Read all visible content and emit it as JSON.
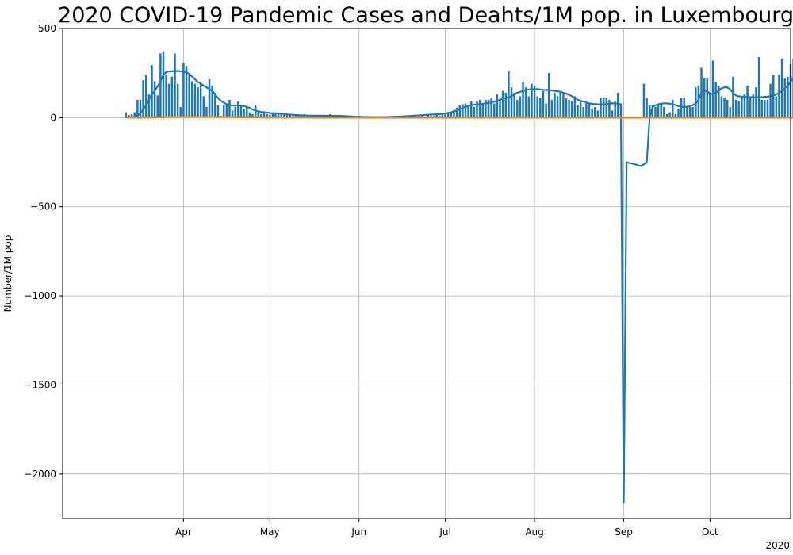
{
  "chart_data": {
    "type": "bar",
    "title": "2020 COVID-19 Pandemic Cases and Deahts/1M pop. in Luxembourg",
    "ylabel": "Number/1M pop",
    "x_offset_label": "2020",
    "ylim": [
      -2250,
      500
    ],
    "xlim": [
      "2020-02-19",
      "2020-10-29"
    ],
    "grid": true,
    "y_ticks": [
      {
        "value": 500,
        "label": "500"
      },
      {
        "value": 0,
        "label": "0"
      },
      {
        "value": -500,
        "label": "−500"
      },
      {
        "value": -1000,
        "label": "−1000"
      },
      {
        "value": -1500,
        "label": "−1500"
      },
      {
        "value": -2000,
        "label": "−2000"
      }
    ],
    "x_ticks": [
      {
        "date": "2020-04-01",
        "label": "Apr"
      },
      {
        "date": "2020-05-01",
        "label": "May"
      },
      {
        "date": "2020-06-01",
        "label": "Jun"
      },
      {
        "date": "2020-07-01",
        "label": "Jul"
      },
      {
        "date": "2020-08-01",
        "label": "Aug"
      },
      {
        "date": "2020-09-01",
        "label": "Sep"
      },
      {
        "date": "2020-10-01",
        "label": "Oct"
      }
    ],
    "colors": {
      "cases": "#1f77b4",
      "deaths": "#ff7f0e",
      "grid": "#b0b0b0"
    },
    "series": [
      {
        "kind": "bars",
        "start": "2020-03-12",
        "values": [
          30,
          15,
          20,
          30,
          100,
          100,
          210,
          240,
          130,
          295,
          205,
          125,
          360,
          370,
          240,
          190,
          230,
          360,
          190,
          60,
          305,
          290,
          240,
          205,
          190,
          170,
          195,
          120,
          60,
          215,
          180,
          140,
          70,
          10,
          70,
          80,
          100,
          40,
          60,
          90,
          70,
          50,
          60,
          30,
          20,
          70,
          40,
          20,
          25,
          20,
          15,
          30,
          20,
          20,
          25,
          15,
          20,
          20,
          10,
          15,
          10,
          15,
          20,
          10,
          10,
          10,
          15,
          10,
          15,
          10,
          10,
          20,
          15,
          10,
          10,
          10,
          10,
          10,
          10,
          5,
          5,
          10,
          5,
          5,
          5,
          5,
          5,
          5,
          5,
          5,
          5,
          5,
          5,
          5,
          5,
          10,
          5,
          10,
          5,
          10,
          15,
          5,
          10,
          15,
          5,
          20,
          10,
          10,
          20,
          10,
          20,
          25,
          25,
          30,
          45,
          55,
          70,
          75,
          80,
          70,
          90,
          60,
          90,
          100,
          80,
          100,
          100,
          110,
          80,
          130,
          100,
          150,
          140,
          260,
          170,
          140,
          100,
          120,
          200,
          170,
          120,
          190,
          180,
          120,
          110,
          150,
          80,
          250,
          100,
          140,
          120,
          140,
          130,
          110,
          100,
          90,
          120,
          70,
          90,
          60,
          80,
          80,
          50,
          60,
          40,
          110,
          110,
          110,
          100,
          40,
          90,
          140,
          70,
          0,
          0,
          0,
          0,
          0,
          0,
          0,
          190,
          110,
          70,
          70,
          60,
          70,
          80,
          60,
          20,
          30,
          100,
          20,
          50,
          110,
          110,
          60,
          60,
          60,
          170,
          180,
          280,
          220,
          220,
          140,
          320,
          200,
          180,
          120,
          110,
          100,
          60,
          230,
          100,
          90,
          120,
          130,
          180,
          120,
          130,
          170,
          340,
          100,
          100,
          100,
          190,
          240,
          120,
          240,
          330,
          220,
          230,
          300,
          330,
          360
        ],
        "name": ""
      },
      {
        "kind": "line",
        "start": "2020-03-12",
        "values": [
          0,
          0,
          0,
          5,
          10,
          25,
          45,
          70,
          100,
          130,
          150,
          175,
          205,
          240,
          255,
          260,
          260,
          262,
          262,
          260,
          258,
          255,
          245,
          230,
          215,
          200,
          190,
          180,
          170,
          160,
          150,
          130,
          110,
          95,
          85,
          75,
          70,
          68,
          68,
          68,
          68,
          65,
          60,
          55,
          45,
          40,
          35,
          32,
          30,
          28,
          26,
          25,
          25,
          24,
          22,
          20,
          18,
          17,
          16,
          15,
          14,
          13,
          12,
          12,
          11,
          11,
          11,
          11,
          11,
          11,
          10,
          10,
          10,
          10,
          10,
          10,
          9,
          8,
          7,
          6,
          5,
          5,
          4,
          4,
          4,
          3,
          3,
          3,
          3,
          3,
          3,
          4,
          4,
          5,
          5,
          6,
          7,
          8,
          9,
          10,
          11,
          12,
          13,
          14,
          15,
          16,
          17,
          18,
          19,
          20,
          22,
          24,
          27,
          30,
          35,
          40,
          48,
          55,
          60,
          65,
          70,
          72,
          74,
          76,
          78,
          80,
          82,
          85,
          90,
          95,
          100,
          105,
          110,
          115,
          120,
          130,
          140,
          145,
          150,
          155,
          158,
          160,
          160,
          160,
          158,
          156,
          155,
          155,
          152,
          150,
          148,
          145,
          140,
          135,
          128,
          120,
          110,
          100,
          95,
          90,
          85,
          80,
          78,
          76,
          75,
          74,
          74,
          76,
          78,
          80,
          80,
          78,
          75,
          -2160,
          -250,
          -255,
          -258,
          -262,
          -268,
          -272,
          -262,
          -252,
          0,
          60,
          70,
          75,
          78,
          80,
          80,
          78,
          75,
          70,
          65,
          60,
          60,
          62,
          65,
          70,
          80,
          100,
          140,
          150,
          148,
          135,
          132,
          140,
          152,
          165,
          170,
          170,
          158,
          140,
          125,
          120,
          118,
          118,
          116,
          115,
          114,
          114,
          115,
          115,
          117,
          118,
          120,
          125,
          130,
          140,
          150,
          165,
          180,
          200,
          230,
          240,
          220,
          195,
          200,
          210,
          230
        ],
        "name": ""
      },
      {
        "kind": "line",
        "start": "2020-03-12",
        "values": [
          0,
          0,
          0,
          0,
          0,
          0,
          1,
          1,
          1,
          1,
          2,
          2,
          2,
          3,
          3,
          3,
          3,
          3,
          3,
          4,
          4,
          4,
          4,
          4,
          4,
          4,
          4,
          4,
          4,
          4,
          4,
          3,
          3,
          3,
          3,
          3,
          3,
          3,
          2,
          2,
          2,
          2,
          2,
          2,
          2,
          2,
          2,
          1,
          1,
          1,
          1,
          1,
          1,
          1,
          1,
          1,
          1,
          1,
          1,
          1,
          1,
          1,
          1,
          1,
          1,
          0,
          0,
          0,
          0,
          0,
          0,
          0,
          0,
          0,
          0,
          0,
          0,
          0,
          0,
          0,
          0,
          0,
          0,
          0,
          0,
          0,
          0,
          0,
          0,
          0,
          0,
          0,
          0,
          0,
          0,
          0,
          0,
          0,
          0,
          0,
          0,
          0,
          0,
          0,
          0,
          0,
          0,
          0,
          0,
          0,
          0,
          0,
          0,
          0,
          0,
          0,
          0,
          0,
          0,
          0,
          0,
          0,
          0,
          0,
          0,
          0,
          0,
          0,
          0,
          0,
          0,
          0,
          0,
          0,
          0,
          0,
          0,
          0,
          0,
          0,
          0,
          0,
          0,
          0,
          0,
          0,
          0,
          0,
          0,
          0,
          0,
          0,
          0,
          0,
          0,
          0,
          0,
          0,
          0,
          0,
          0,
          0,
          0,
          0,
          0,
          0,
          0,
          0,
          0,
          0,
          0,
          0,
          0,
          0,
          0,
          0,
          0,
          0,
          0,
          0,
          0,
          0,
          0,
          0,
          0,
          0,
          0,
          0,
          0,
          0,
          0,
          0,
          0,
          0,
          0,
          0,
          0,
          0,
          0,
          0,
          0,
          0,
          0,
          0,
          0,
          0,
          0,
          0,
          0,
          0,
          0,
          0,
          0,
          0,
          0,
          0,
          0,
          0,
          0,
          0,
          0,
          0,
          0,
          0,
          0,
          0,
          0,
          0,
          0,
          0,
          0,
          0,
          0,
          0,
          0,
          0,
          0,
          0,
          0,
          0,
          0,
          0,
          0,
          0,
          0,
          0,
          0,
          0,
          0,
          0,
          0
        ],
        "name": ""
      }
    ]
  }
}
